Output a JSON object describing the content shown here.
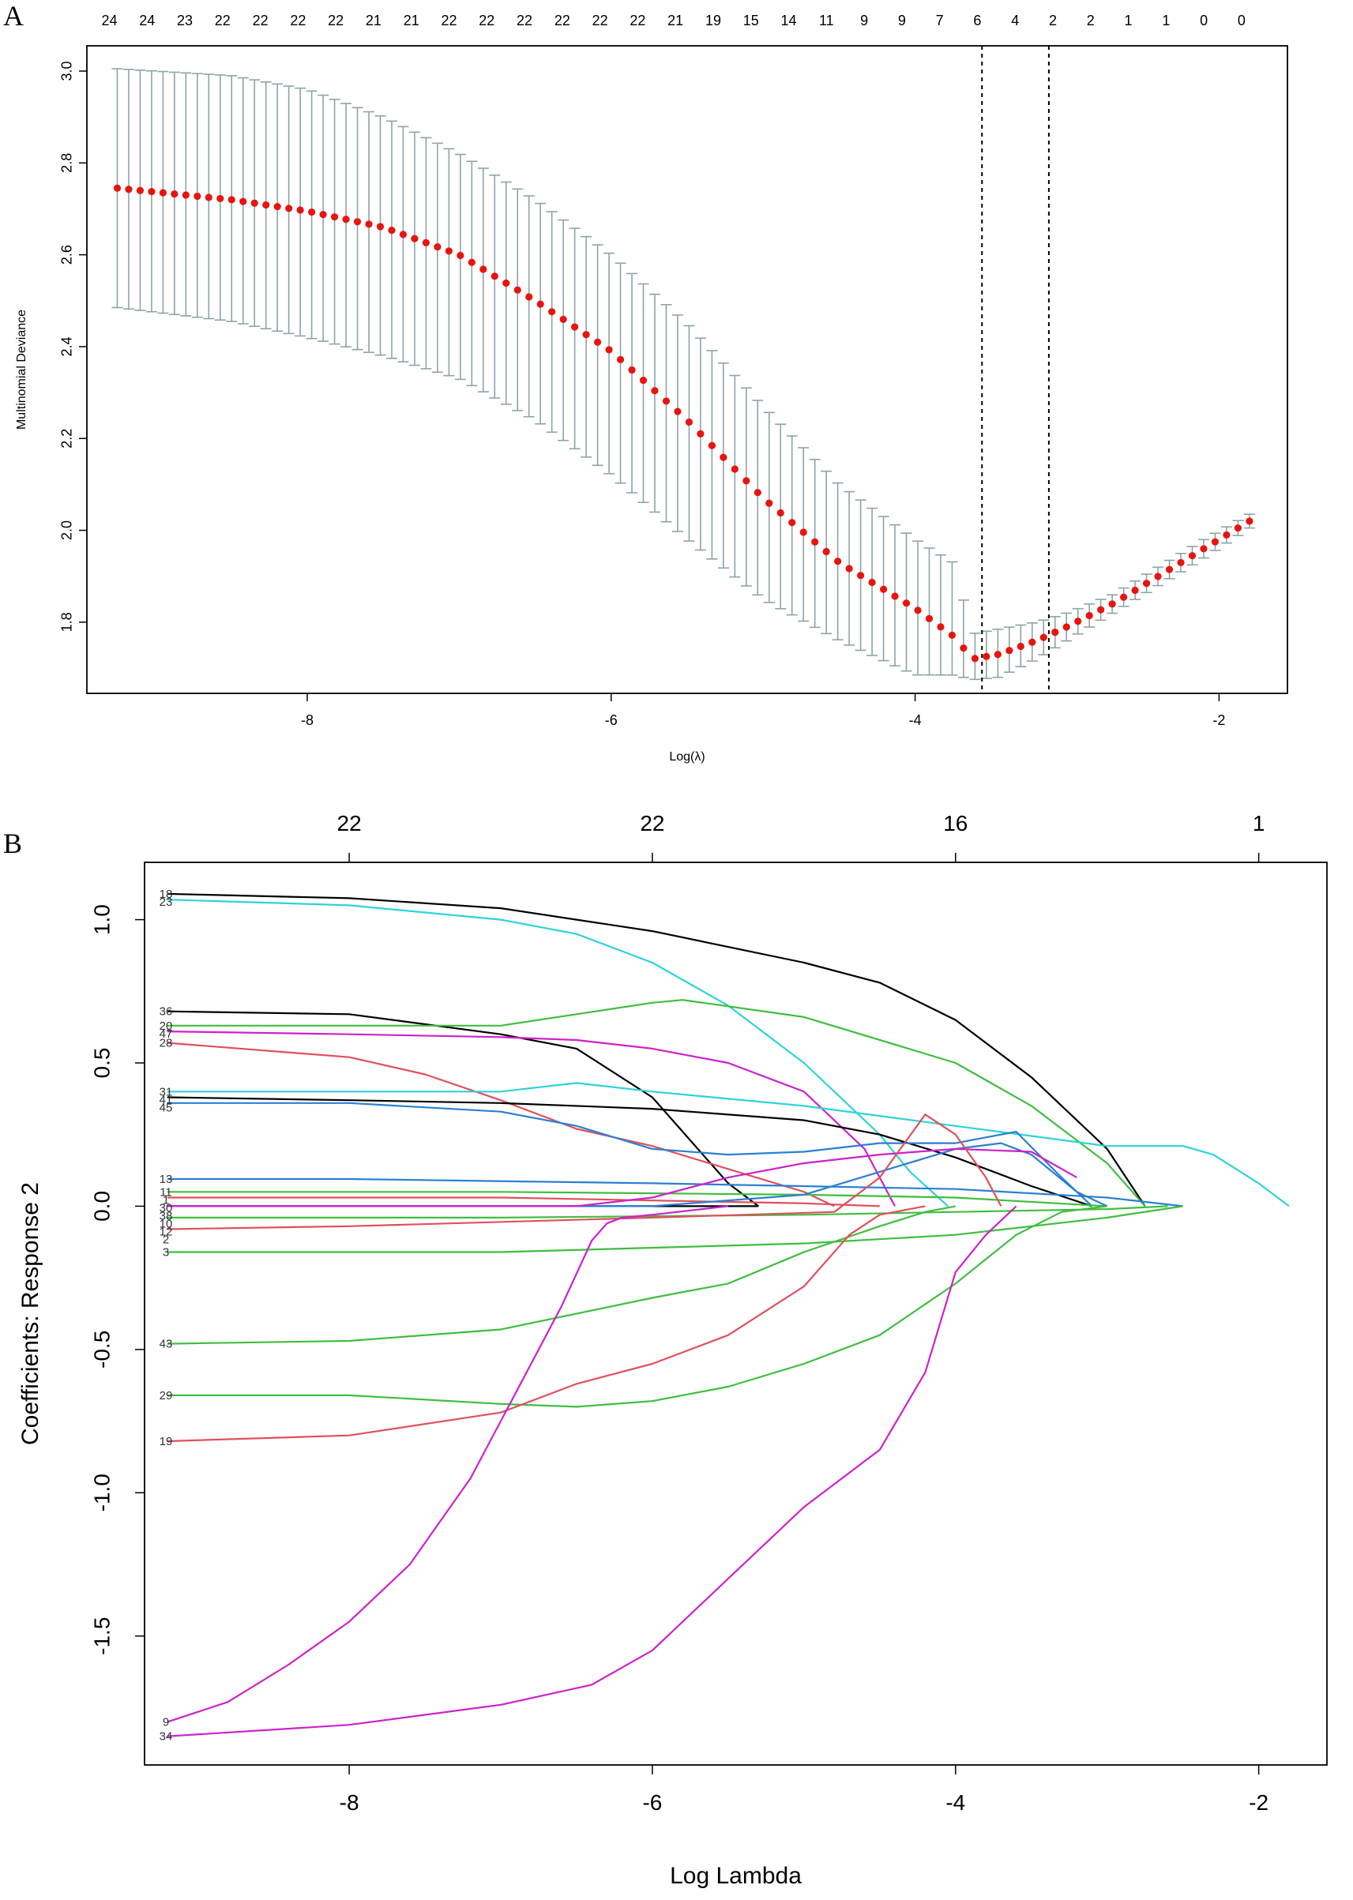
{
  "chart_data": [
    {
      "panel": "A",
      "type": "scatter",
      "subtype": "cross-validation deviance with error bars",
      "xlabel": "Log(λ)",
      "ylabel": "Multinomial Deviance",
      "xlim": [
        -9.45,
        -1.55
      ],
      "ylim": [
        1.645,
        3.055
      ],
      "x_ticks": [
        -8,
        -6,
        -4,
        -2
      ],
      "x_tick_labels": [
        "-8",
        "-6",
        "-4",
        "-2"
      ],
      "y_ticks": [
        1.8,
        2.0,
        2.2,
        2.4,
        2.6,
        2.8,
        3.0
      ],
      "y_tick_labels": [
        "1.8",
        "2.0",
        "2.2",
        "2.4",
        "2.6",
        "2.8",
        "3.0"
      ],
      "top_axis_labels": [
        "24",
        "24",
        "23",
        "22",
        "22",
        "22",
        "22",
        "21",
        "21",
        "22",
        "22",
        "22",
        "22",
        "22",
        "22",
        "21",
        "19",
        "15",
        "14",
        "11",
        "9",
        "9",
        "7",
        "6",
        "4",
        "2",
        "2",
        "1",
        "1",
        "0",
        "0"
      ],
      "vlines": [
        -3.56,
        -3.12
      ],
      "point_color": "#e8140f",
      "errorbar_color": "#8ea3a8",
      "curve_knots": {
        "x": [
          -9.25,
          -8.5,
          -8.0,
          -7.5,
          -7.0,
          -6.5,
          -6.0,
          -5.5,
          -5.0,
          -4.5,
          -4.0,
          -3.75,
          -3.62,
          -3.45,
          -3.2,
          -3.0,
          -2.7,
          -2.4,
          -2.1,
          -1.8
        ],
        "mean": [
          2.745,
          2.72,
          2.695,
          2.66,
          2.6,
          2.5,
          2.39,
          2.24,
          2.07,
          1.93,
          1.83,
          1.77,
          1.72,
          1.73,
          1.76,
          1.79,
          1.84,
          1.9,
          1.96,
          2.02
        ],
        "upper": [
          3.005,
          2.99,
          2.96,
          2.9,
          2.82,
          2.72,
          2.6,
          2.45,
          2.27,
          2.1,
          1.98,
          1.93,
          1.775,
          1.785,
          1.8,
          1.82,
          1.86,
          1.92,
          1.98,
          2.035
        ],
        "lower": [
          2.485,
          2.455,
          2.42,
          2.38,
          2.33,
          2.24,
          2.12,
          1.98,
          1.85,
          1.76,
          1.685,
          1.685,
          1.675,
          1.68,
          1.72,
          1.76,
          1.82,
          1.88,
          1.94,
          2.005
        ]
      },
      "n_points": 100
    },
    {
      "panel": "B",
      "type": "line",
      "subtype": "coefficient paths",
      "xlabel": "Log Lambda",
      "ylabel": "Coefficients: Response 2",
      "xlim": [
        -9.35,
        -1.55
      ],
      "ylim": [
        -1.95,
        1.2
      ],
      "x_ticks": [
        -8,
        -6,
        -4,
        -2
      ],
      "x_tick_labels": [
        "-8",
        "-6",
        "-4",
        "-2"
      ],
      "y_ticks": [
        -1.5,
        -1.0,
        -0.5,
        0.0,
        0.5,
        1.0
      ],
      "y_tick_labels": [
        "-1.5",
        "-1.0",
        "-0.5",
        "0.0",
        "0.5",
        "1.0"
      ],
      "top_ticks": [
        -8,
        -6,
        -4,
        -2
      ],
      "top_axis_labels": [
        "22",
        "22",
        "16",
        "1"
      ],
      "series": [
        {
          "name": "18",
          "color": "#000000",
          "x": [
            -9.2,
            -8.0,
            -7.0,
            -6.0,
            -5.0,
            -4.5,
            -4.0,
            -3.5,
            -3.0,
            -2.75
          ],
          "y": [
            1.09,
            1.075,
            1.04,
            0.96,
            0.85,
            0.78,
            0.65,
            0.45,
            0.2,
            0.0
          ]
        },
        {
          "name": "23",
          "color": "#2ed3d8",
          "x": [
            -9.2,
            -8.0,
            -7.0,
            -6.5,
            -6.0,
            -5.5,
            -5.0,
            -4.5,
            -4.3,
            -4.05
          ],
          "y": [
            1.07,
            1.05,
            1.0,
            0.95,
            0.85,
            0.7,
            0.5,
            0.25,
            0.12,
            0.0
          ]
        },
        {
          "name": "36",
          "color": "#000000",
          "x": [
            -9.2,
            -8.0,
            -7.0,
            -6.5,
            -6.0,
            -5.7,
            -5.5,
            -5.3
          ],
          "y": [
            0.68,
            0.67,
            0.6,
            0.55,
            0.38,
            0.2,
            0.08,
            0.0
          ]
        },
        {
          "name": "20",
          "color": "#3fbe3f",
          "x": [
            -9.2,
            -8.0,
            -7.0,
            -6.5,
            -6.0,
            -5.8,
            -5.0,
            -4.0,
            -3.5,
            -3.0,
            -2.75
          ],
          "y": [
            0.63,
            0.63,
            0.63,
            0.67,
            0.71,
            0.72,
            0.66,
            0.5,
            0.35,
            0.15,
            0.0
          ]
        },
        {
          "name": "47",
          "color": "#cc22cc",
          "x": [
            -9.2,
            -8.0,
            -7.0,
            -6.5,
            -6.0,
            -5.5,
            -5.0,
            -4.6,
            -4.4
          ],
          "y": [
            0.61,
            0.6,
            0.59,
            0.58,
            0.55,
            0.5,
            0.4,
            0.2,
            0.0
          ]
        },
        {
          "name": "28",
          "color": "#e0505c",
          "x": [
            -9.2,
            -8.0,
            -7.5,
            -7.0,
            -6.5,
            -6.0,
            -5.5,
            -5.0,
            -4.8
          ],
          "y": [
            0.57,
            0.52,
            0.46,
            0.37,
            0.27,
            0.21,
            0.13,
            0.05,
            0.0
          ]
        },
        {
          "name": "31",
          "color": "#2ed3d8",
          "x": [
            -9.2,
            -8.0,
            -7.0,
            -6.5,
            -6.0,
            -5.0,
            -4.0,
            -3.0,
            -2.5,
            -2.3,
            -2.0,
            -1.8
          ],
          "y": [
            0.4,
            0.4,
            0.4,
            0.43,
            0.4,
            0.35,
            0.28,
            0.21,
            0.21,
            0.18,
            0.08,
            0.0
          ]
        },
        {
          "name": "41",
          "color": "#000000",
          "x": [
            -9.2,
            -8.0,
            -7.0,
            -6.0,
            -5.0,
            -4.5,
            -4.0,
            -3.5,
            -3.1
          ],
          "y": [
            0.38,
            0.37,
            0.36,
            0.34,
            0.3,
            0.25,
            0.17,
            0.07,
            0.0
          ]
        },
        {
          "name": "45",
          "color": "#2a7fd4",
          "x": [
            -9.2,
            -8.0,
            -7.0,
            -6.5,
            -6.0,
            -5.5,
            -5.0,
            -4.5,
            -4.0,
            -3.6,
            -3.3,
            -3.1
          ],
          "y": [
            0.36,
            0.36,
            0.33,
            0.28,
            0.2,
            0.18,
            0.19,
            0.22,
            0.22,
            0.26,
            0.1,
            0.0
          ]
        },
        {
          "name": "13",
          "color": "#2a7fd4",
          "x": [
            -9.2,
            -8.0,
            -6.0,
            -4.0,
            -3.0,
            -2.5
          ],
          "y": [
            0.095,
            0.095,
            0.08,
            0.06,
            0.03,
            0.0
          ]
        },
        {
          "name": "11",
          "color": "#3fbe3f",
          "x": [
            -9.2,
            -7.0,
            -5.0,
            -4.0,
            -3.0
          ],
          "y": [
            0.05,
            0.05,
            0.04,
            0.03,
            0.0
          ]
        },
        {
          "name": "1",
          "color": "#e0505c",
          "x": [
            -9.2,
            -7.0,
            -5.0,
            -4.5
          ],
          "y": [
            0.03,
            0.03,
            0.01,
            0.0
          ]
        },
        {
          "name": "30",
          "color": "#000000",
          "x": [
            -9.2,
            -8.0,
            -6.0,
            -5.3
          ],
          "y": [
            0.0,
            0.0,
            0.0,
            0.0
          ]
        },
        {
          "name": "38",
          "color": "#2a7fd4",
          "x": [
            -9.2,
            -6.0,
            -5.0,
            -4.5,
            -4.0,
            -3.7,
            -3.5,
            -3.2,
            -3.0
          ],
          "y": [
            0.0,
            0.0,
            0.04,
            0.12,
            0.2,
            0.22,
            0.18,
            0.05,
            0.0
          ]
        },
        {
          "name": "10",
          "color": "#cc22cc",
          "x": [
            -9.2,
            -6.5,
            -6.0,
            -5.5,
            -5.0,
            -4.5,
            -4.0,
            -3.5,
            -3.2
          ],
          "y": [
            0.0,
            0.0,
            0.03,
            0.1,
            0.15,
            0.18,
            0.2,
            0.19,
            0.1
          ]
        },
        {
          "name": "12",
          "color": "#3fbe3f",
          "x": [
            -9.2,
            -7.0,
            -5.0,
            -4.0,
            -3.0,
            -2.6
          ],
          "y": [
            -0.04,
            -0.04,
            -0.03,
            -0.02,
            -0.01,
            0.0
          ]
        },
        {
          "name": "2",
          "color": "#e0505c",
          "x": [
            -9.2,
            -8.0,
            -6.0,
            -4.8,
            -4.5,
            -4.2,
            -4.0,
            -3.8,
            -3.7
          ],
          "y": [
            -0.08,
            -0.07,
            -0.04,
            -0.02,
            0.1,
            0.32,
            0.25,
            0.1,
            0.0
          ]
        },
        {
          "name": "3",
          "color": "#3fbe3f",
          "x": [
            -9.2,
            -7.0,
            -5.0,
            -4.0,
            -3.0,
            -2.5
          ],
          "y": [
            -0.16,
            -0.16,
            -0.13,
            -0.1,
            -0.04,
            0.0
          ]
        },
        {
          "name": "43",
          "color": "#3fbe3f",
          "x": [
            -9.2,
            -8.0,
            -7.0,
            -6.0,
            -5.5,
            -5.0,
            -4.5,
            -4.2,
            -4.0
          ],
          "y": [
            -0.48,
            -0.47,
            -0.43,
            -0.32,
            -0.27,
            -0.16,
            -0.07,
            -0.02,
            0.0
          ]
        },
        {
          "name": "29",
          "color": "#3fbe3f",
          "x": [
            -9.2,
            -8.0,
            -7.0,
            -6.5,
            -6.0,
            -5.5,
            -5.0,
            -4.5,
            -4.0,
            -3.6,
            -3.3,
            -3.0
          ],
          "y": [
            -0.66,
            -0.66,
            -0.69,
            -0.7,
            -0.68,
            -0.63,
            -0.55,
            -0.45,
            -0.27,
            -0.1,
            -0.02,
            0.0
          ]
        },
        {
          "name": "19",
          "color": "#e0505c",
          "x": [
            -9.2,
            -8.0,
            -7.0,
            -6.5,
            -6.0,
            -5.5,
            -5.0,
            -4.7,
            -4.5,
            -4.2
          ],
          "y": [
            -0.82,
            -0.8,
            -0.72,
            -0.62,
            -0.55,
            -0.45,
            -0.28,
            -0.1,
            -0.03,
            0.0
          ]
        },
        {
          "name": "9",
          "color": "#cc22cc",
          "x": [
            -9.2,
            -8.8,
            -8.4,
            -8.0,
            -7.6,
            -7.2,
            -6.9,
            -6.6,
            -6.4,
            -6.3,
            -6.2,
            -6.0,
            -5.5
          ],
          "y": [
            -1.8,
            -1.73,
            -1.6,
            -1.45,
            -1.25,
            -0.95,
            -0.65,
            -0.35,
            -0.12,
            -0.06,
            -0.04,
            -0.03,
            0.0
          ]
        },
        {
          "name": "34",
          "color": "#cc22cc",
          "x": [
            -9.2,
            -8.0,
            -7.0,
            -6.4,
            -6.0,
            -5.5,
            -5.0,
            -4.5,
            -4.2,
            -4.0,
            -3.8,
            -3.6
          ],
          "y": [
            -1.85,
            -1.81,
            -1.74,
            -1.67,
            -1.55,
            -1.3,
            -1.05,
            -0.85,
            -0.58,
            -0.23,
            -0.1,
            0.0
          ]
        }
      ],
      "left_labels": [
        "18",
        "23",
        "36",
        "20",
        "47",
        "28",
        "31",
        "41",
        "45",
        "13",
        "11",
        "1",
        "30",
        "38",
        "10",
        "12",
        "2",
        "3",
        "43",
        "29",
        "19",
        "9",
        "34"
      ]
    }
  ],
  "panels": {
    "a": {
      "letter": "A"
    },
    "b": {
      "letter": "B"
    }
  }
}
